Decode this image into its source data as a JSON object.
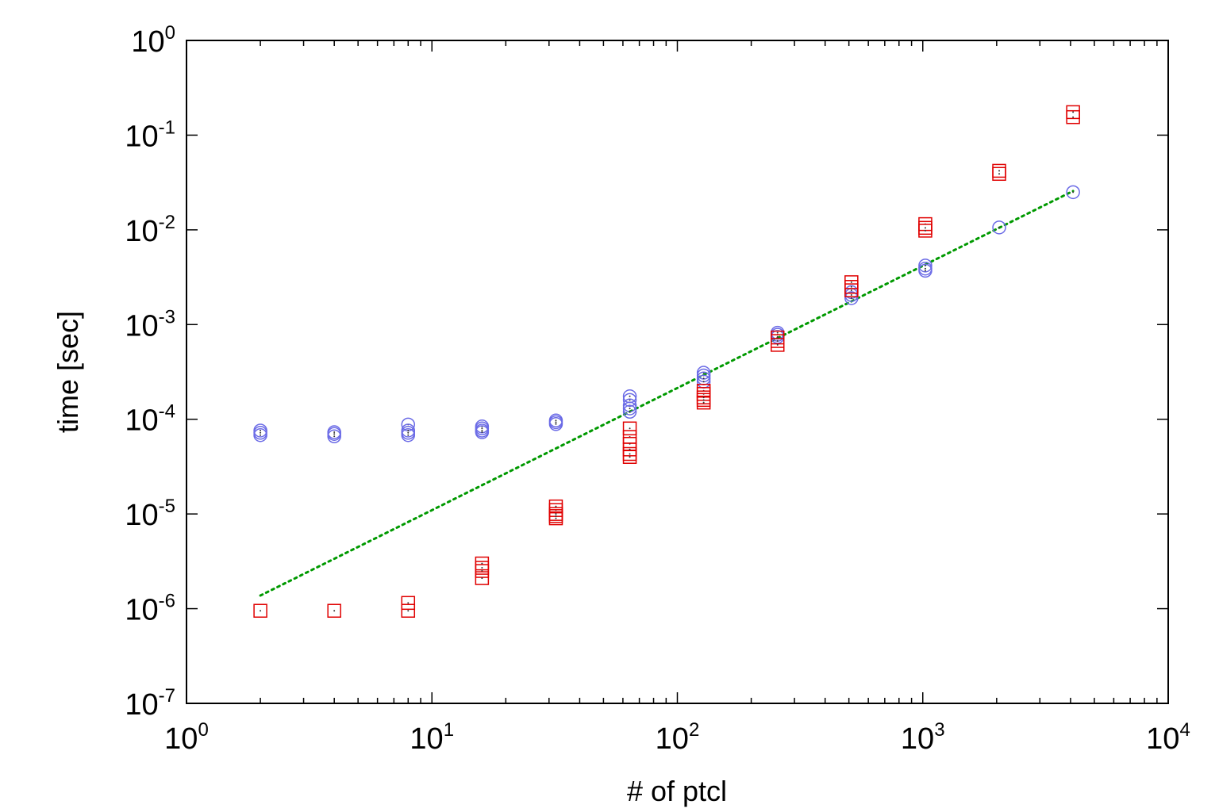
{
  "chart_data": {
    "type": "scatter",
    "xlabel": "# of ptcl",
    "ylabel": "time [sec]",
    "xscale": "log",
    "yscale": "log",
    "xlim": [
      1,
      10000
    ],
    "ylim": [
      1e-07,
      1
    ],
    "x_ticks": [
      {
        "base": "10",
        "exp": "0",
        "value": 1
      },
      {
        "base": "10",
        "exp": "1",
        "value": 10
      },
      {
        "base": "10",
        "exp": "2",
        "value": 100
      },
      {
        "base": "10",
        "exp": "3",
        "value": 1000
      },
      {
        "base": "10",
        "exp": "4",
        "value": 10000
      }
    ],
    "y_ticks": [
      {
        "base": "10",
        "exp": "-7",
        "value": 1e-07
      },
      {
        "base": "10",
        "exp": "-6",
        "value": 1e-06
      },
      {
        "base": "10",
        "exp": "-5",
        "value": 1e-05
      },
      {
        "base": "10",
        "exp": "-4",
        "value": 0.0001
      },
      {
        "base": "10",
        "exp": "-3",
        "value": 0.001
      },
      {
        "base": "10",
        "exp": "-2",
        "value": 0.01
      },
      {
        "base": "10",
        "exp": "-1",
        "value": 0.1
      },
      {
        "base": "10",
        "exp": "0",
        "value": 1
      }
    ],
    "grid": false,
    "legend": "none",
    "series": [
      {
        "marker": "circle",
        "color": "#6a6ae6",
        "points": [
          [
            2,
            7.6e-05
          ],
          [
            2,
            7.2e-05
          ],
          [
            2,
            6.8e-05
          ],
          [
            4,
            7.3e-05
          ],
          [
            4,
            7e-05
          ],
          [
            4,
            6.6e-05
          ],
          [
            8,
            8.8e-05
          ],
          [
            8,
            7.6e-05
          ],
          [
            8,
            7.2e-05
          ],
          [
            8,
            6.8e-05
          ],
          [
            16,
            8.4e-05
          ],
          [
            16,
            8e-05
          ],
          [
            16,
            7.6e-05
          ],
          [
            16,
            7.3e-05
          ],
          [
            32,
            9.7e-05
          ],
          [
            32,
            9.3e-05
          ],
          [
            32,
            8.9e-05
          ],
          [
            64,
            0.000175
          ],
          [
            64,
            0.00016
          ],
          [
            64,
            0.00014
          ],
          [
            64,
            0.00013
          ],
          [
            64,
            0.00012
          ],
          [
            128,
            0.00031
          ],
          [
            128,
            0.00029
          ],
          [
            128,
            0.00027
          ],
          [
            128,
            0.00025
          ],
          [
            256,
            0.00082
          ],
          [
            256,
            0.00078
          ],
          [
            256,
            0.00074
          ],
          [
            512,
            0.0022
          ],
          [
            512,
            0.00205
          ],
          [
            512,
            0.0019
          ],
          [
            1024,
            0.0042
          ],
          [
            1024,
            0.0039
          ],
          [
            1024,
            0.0037
          ],
          [
            2048,
            0.0106
          ],
          [
            4096,
            0.025
          ]
        ]
      },
      {
        "marker": "square",
        "color": "#e00000",
        "points": [
          [
            2,
            9.5e-07
          ],
          [
            4,
            9.5e-07
          ],
          [
            8,
            1.15e-06
          ],
          [
            8,
            9.5e-07
          ],
          [
            16,
            3e-06
          ],
          [
            16,
            2.7e-06
          ],
          [
            16,
            2.5e-06
          ],
          [
            16,
            2.1e-06
          ],
          [
            32,
            1.2e-05
          ],
          [
            32,
            1.1e-05
          ],
          [
            32,
            1e-05
          ],
          [
            32,
            9.5e-06
          ],
          [
            32,
            9e-06
          ],
          [
            64,
            8e-05
          ],
          [
            64,
            6.5e-05
          ],
          [
            64,
            5.5e-05
          ],
          [
            64,
            4.8e-05
          ],
          [
            64,
            4.3e-05
          ],
          [
            64,
            4e-05
          ],
          [
            128,
            0.0002
          ],
          [
            128,
            0.000185
          ],
          [
            128,
            0.00017
          ],
          [
            128,
            0.00016
          ],
          [
            128,
            0.00015
          ],
          [
            256,
            0.00073
          ],
          [
            256,
            0.00067
          ],
          [
            256,
            0.00061
          ],
          [
            512,
            0.0028
          ],
          [
            512,
            0.0025
          ],
          [
            512,
            0.0023
          ],
          [
            1024,
            0.0115
          ],
          [
            1024,
            0.0105
          ],
          [
            1024,
            0.0098
          ],
          [
            2048,
            0.042
          ],
          [
            2048,
            0.039
          ],
          [
            4096,
            0.175
          ],
          [
            4096,
            0.155
          ]
        ]
      },
      {
        "marker": "line",
        "style": "dotted",
        "color": "#009900",
        "function": "y = 5.625e-7 * x^1.29",
        "x_range": [
          2,
          4096
        ]
      }
    ]
  }
}
